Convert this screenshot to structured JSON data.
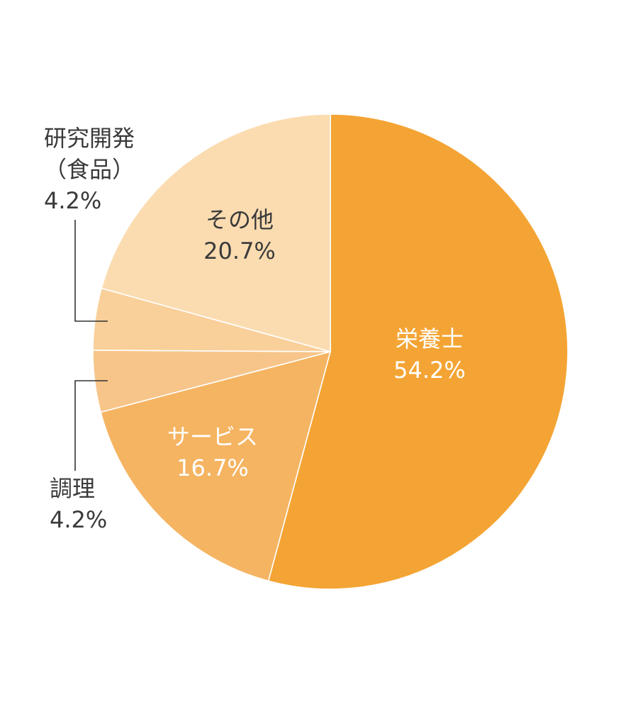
{
  "chart_data": {
    "type": "pie",
    "start_angle": "12 o'clock",
    "direction": "clockwise",
    "slices": [
      {
        "name": "栄養士",
        "label_lines": [
          "栄養士",
          "54.2%"
        ],
        "value": 54.2,
        "color": "#F4A434",
        "text_color": "#ffffff",
        "label_position": "inside"
      },
      {
        "name": "サービス",
        "label_lines": [
          "サービス",
          "16.7%"
        ],
        "value": 16.7,
        "color": "#F5B462",
        "text_color": "#ffffff",
        "label_position": "inside"
      },
      {
        "name": "調理",
        "label_lines": [
          "調理",
          "4.2%"
        ],
        "value": 4.2,
        "color": "#F7C58A",
        "text_color": "#3a3a3a",
        "label_position": "outside-left"
      },
      {
        "name": "研究開発（食品）",
        "label_lines": [
          "研究開発",
          "（食品）",
          "4.2%"
        ],
        "value": 4.2,
        "color": "#F9CF9A",
        "text_color": "#3a3a3a",
        "label_position": "outside-left"
      },
      {
        "name": "その他",
        "label_lines": [
          "その他",
          "20.7%"
        ],
        "value": 20.7,
        "color": "#FBDCB1",
        "text_color": "#3a3a3a",
        "label_position": "inside"
      }
    ]
  }
}
